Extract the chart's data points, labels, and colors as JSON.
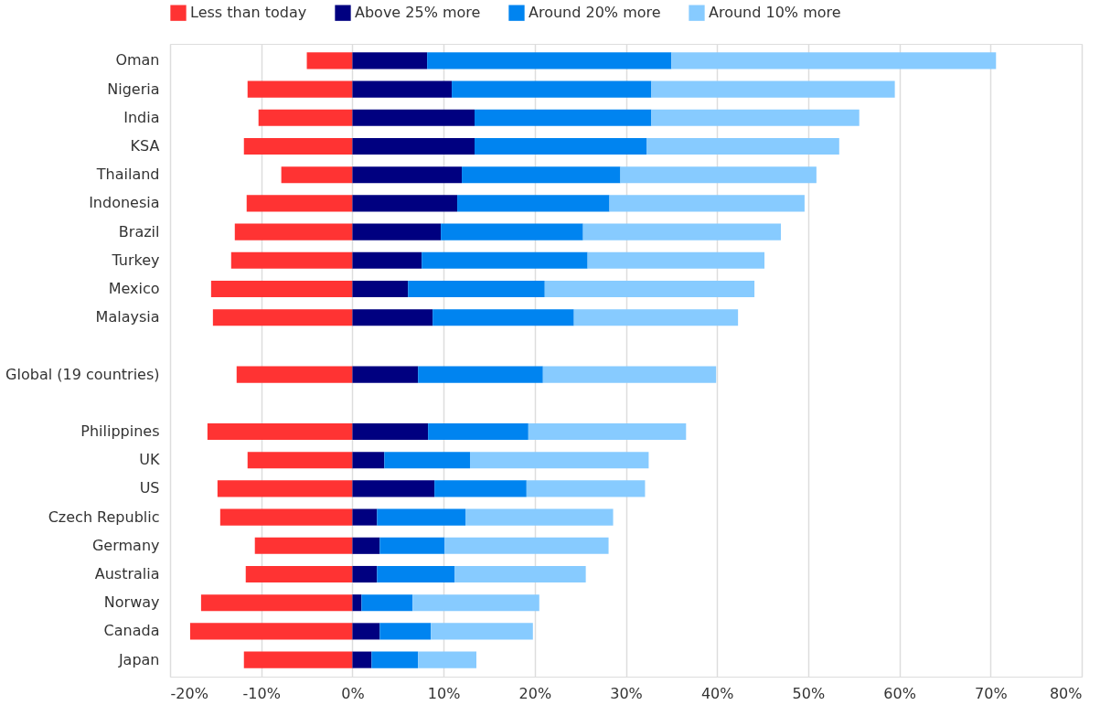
{
  "chart_data": {
    "type": "bar",
    "orientation": "horizontal",
    "stacked": true,
    "categories": [
      "Oman",
      "Nigeria",
      "India",
      "KSA",
      "Thailand",
      "Indonesia",
      "Brazil",
      "Turkey",
      "Mexico",
      "Malaysia",
      null,
      "Global (19 countries)",
      null,
      "Philippines",
      "UK",
      "US",
      "Czech Republic",
      "Germany",
      "Australia",
      "Norway",
      "Canada",
      "Japan"
    ],
    "series": [
      {
        "name": "Less than today",
        "color": "#ff3333",
        "values": [
          -5.0,
          -11.5,
          -10.3,
          -11.9,
          -7.8,
          -11.6,
          -12.9,
          -13.3,
          -15.5,
          -15.3,
          null,
          -12.7,
          null,
          -15.9,
          -11.5,
          -14.8,
          -14.5,
          -10.7,
          -11.7,
          -16.6,
          -17.8,
          -11.9
        ]
      },
      {
        "name": "Above 25% more",
        "color": "#000080",
        "values": [
          8.2,
          10.9,
          13.4,
          13.4,
          12.0,
          11.5,
          9.7,
          7.6,
          6.1,
          8.8,
          null,
          7.2,
          null,
          8.3,
          3.5,
          9.0,
          2.7,
          3.0,
          2.7,
          1.0,
          3.0,
          2.1
        ]
      },
      {
        "name": "Around 20% more",
        "color": "#0084f0",
        "values": [
          26.8,
          21.9,
          19.4,
          18.9,
          17.4,
          16.7,
          15.6,
          18.2,
          15.0,
          15.5,
          null,
          13.7,
          null,
          11.0,
          9.4,
          10.1,
          9.7,
          7.1,
          8.5,
          5.6,
          5.6,
          5.1
        ]
      },
      {
        "name": "Around 10% more",
        "color": "#87cbff",
        "values": [
          35.6,
          26.7,
          22.8,
          21.1,
          21.5,
          21.4,
          21.7,
          19.4,
          23.0,
          18.0,
          null,
          19.0,
          null,
          17.3,
          19.6,
          13.0,
          16.2,
          18.0,
          14.4,
          13.9,
          11.2,
          6.4
        ]
      }
    ],
    "xlim": [
      -20,
      80
    ],
    "xticks": [
      {
        "value": -20,
        "label": "-20%"
      },
      {
        "value": -10,
        "label": "-10%"
      },
      {
        "value": 0,
        "label": "0%"
      },
      {
        "value": 10,
        "label": "10%"
      },
      {
        "value": 20,
        "label": "20%"
      },
      {
        "value": 30,
        "label": "30%"
      },
      {
        "value": 40,
        "label": "40%"
      },
      {
        "value": 50,
        "label": "50%"
      },
      {
        "value": 60,
        "label": "60%"
      },
      {
        "value": 70,
        "label": "70%"
      },
      {
        "value": 80,
        "label": "80%"
      }
    ],
    "grid": "x",
    "legend": "top left"
  }
}
